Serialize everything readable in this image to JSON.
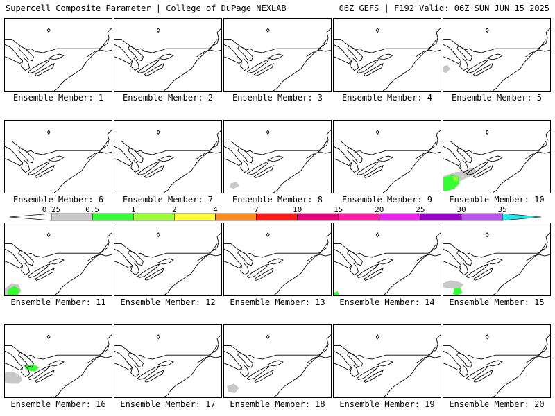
{
  "header": {
    "left": "Supercell Composite Parameter | College of DuPage NEXLAB",
    "right": "06Z GEFS | F192 Valid: 06Z SUN JUN 15 2025"
  },
  "label_prefix": "Ensemble Member: ",
  "members": [
    {
      "id": "1",
      "blobs": []
    },
    {
      "id": "2",
      "blobs": []
    },
    {
      "id": "3",
      "blobs": []
    },
    {
      "id": "4",
      "blobs": []
    },
    {
      "id": "5",
      "blobs": [
        {
          "level": "0.25",
          "color": "#c8c8c8"
        }
      ]
    },
    {
      "id": "6",
      "blobs": []
    },
    {
      "id": "7",
      "blobs": []
    },
    {
      "id": "8",
      "blobs": [
        {
          "level": "0.25",
          "color": "#c8c8c8"
        }
      ]
    },
    {
      "id": "9",
      "blobs": []
    },
    {
      "id": "10",
      "blobs": [
        {
          "level": "0.25",
          "color": "#c8c8c8"
        },
        {
          "level": "0.5",
          "color": "#33ff33"
        },
        {
          "level": "1",
          "color": "#99ff33"
        }
      ]
    },
    {
      "id": "11",
      "blobs": [
        {
          "level": "0.25",
          "color": "#c8c8c8"
        },
        {
          "level": "0.5",
          "color": "#33ff33"
        }
      ]
    },
    {
      "id": "12",
      "blobs": []
    },
    {
      "id": "13",
      "blobs": []
    },
    {
      "id": "14",
      "blobs": [
        {
          "level": "0.5",
          "color": "#33ff33"
        }
      ]
    },
    {
      "id": "15",
      "blobs": [
        {
          "level": "0.25",
          "color": "#c8c8c8"
        },
        {
          "level": "0.5",
          "color": "#33ff33"
        }
      ]
    },
    {
      "id": "16",
      "blobs": [
        {
          "level": "0.25",
          "color": "#c8c8c8"
        },
        {
          "level": "0.5",
          "color": "#33ff33"
        }
      ]
    },
    {
      "id": "17",
      "blobs": []
    },
    {
      "id": "18",
      "blobs": [
        {
          "level": "0.25",
          "color": "#c8c8c8"
        }
      ]
    },
    {
      "id": "19",
      "blobs": []
    },
    {
      "id": "20",
      "blobs": []
    }
  ],
  "colorbar": {
    "labels": [
      "0.25",
      "0.5",
      "1",
      "2",
      "4",
      "7",
      "10",
      "15",
      "20",
      "25",
      "30",
      "35"
    ],
    "colors": [
      "#c8c8c8",
      "#33ff33",
      "#99ff33",
      "#ffff33",
      "#ff8c1a",
      "#ff1a1a",
      "#e6007e",
      "#ff1aa3",
      "#ee22ee",
      "#9900cc",
      "#bb55ee",
      "#22e6ee"
    ]
  }
}
